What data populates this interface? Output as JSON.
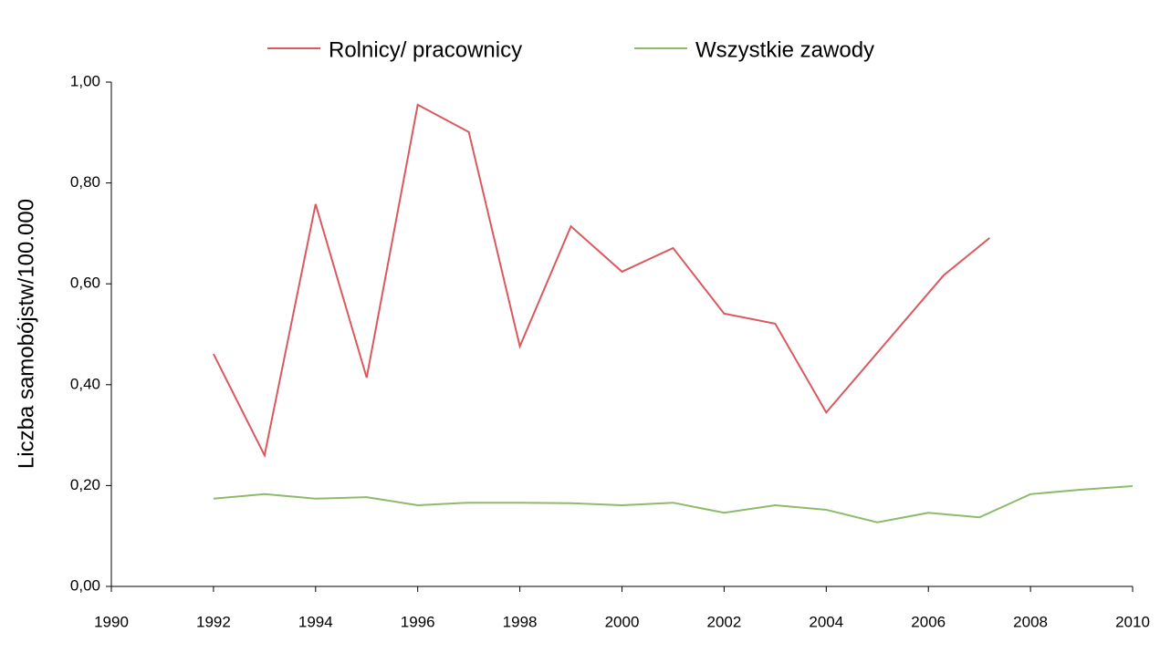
{
  "chart_data": {
    "type": "line",
    "ylabel": "Liczba samobójstw/100.000",
    "xlim": [
      1990,
      2010
    ],
    "xticks": [
      1990,
      1992,
      1994,
      1996,
      1998,
      2000,
      2002,
      2004,
      2006,
      2008,
      2010
    ],
    "ylim": [
      0,
      1
    ],
    "yticks": [
      {
        "value": 0,
        "label": "0,00"
      },
      {
        "value": 0.2,
        "label": "0,20"
      },
      {
        "value": 0.4,
        "label": "0,40"
      },
      {
        "value": 0.6,
        "label": "0,60"
      },
      {
        "value": 0.8,
        "label": "0,80"
      },
      {
        "value": 1,
        "label": "1,00"
      }
    ],
    "grid": false,
    "series": [
      {
        "name": "Rolnicy/ pracownicy",
        "color": "#d9595f",
        "x": [
          1992,
          1993,
          1994,
          1995,
          1996,
          1997,
          1998,
          1999,
          2000,
          2001,
          2002,
          2003,
          2004,
          2006.3,
          2007.2
        ],
        "values": [
          0.461,
          0.26,
          0.758,
          0.414,
          0.955,
          0.901,
          0.476,
          0.714,
          0.624,
          0.671,
          0.541,
          0.521,
          0.345,
          0.617,
          0.691
        ]
      },
      {
        "name": "Wszystkie zawody",
        "color": "#8cbb6c",
        "x": [
          1992,
          1993,
          1994,
          1995,
          1996,
          1997,
          1998,
          1999,
          2000,
          2001,
          2002,
          2003,
          2004,
          2005,
          2006,
          2007,
          2008,
          2009,
          2010
        ],
        "values": [
          0.174,
          0.183,
          0.174,
          0.177,
          0.161,
          0.166,
          0.166,
          0.165,
          0.161,
          0.166,
          0.146,
          0.161,
          0.152,
          0.127,
          0.146,
          0.137,
          0.183,
          0.192,
          0.199
        ]
      }
    ]
  }
}
